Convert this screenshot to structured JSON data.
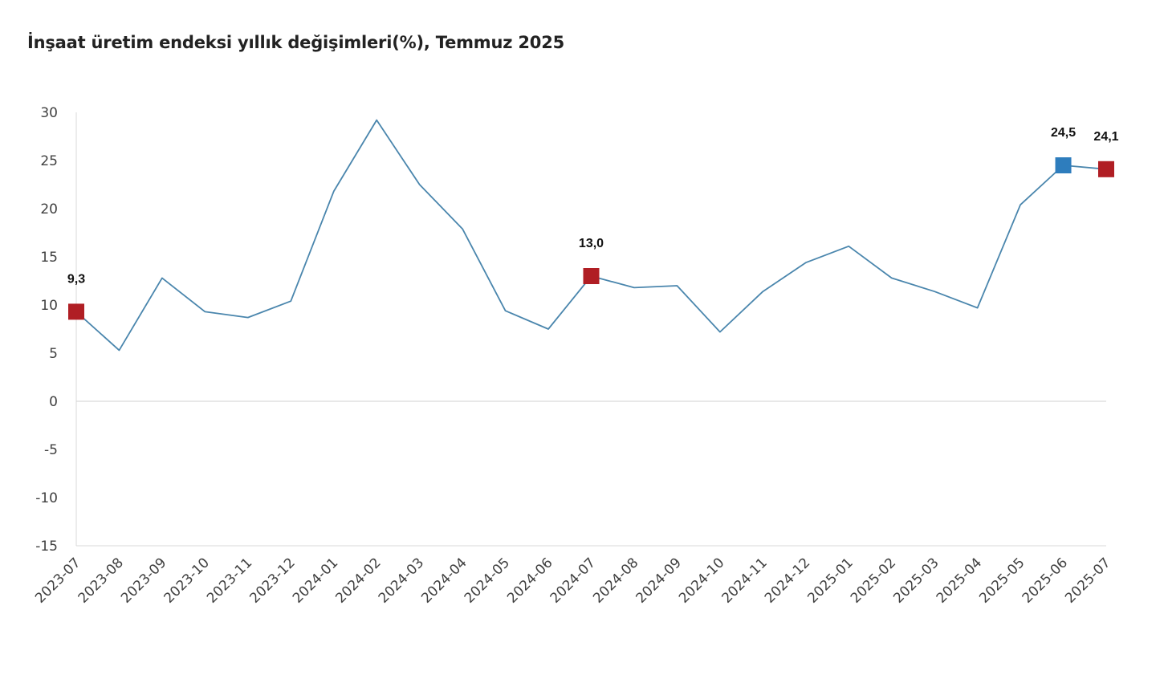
{
  "chart_data": {
    "type": "line",
    "title": "İnşaat üretim endeksi yıllık değişimleri(%), Temmuz 2025",
    "xlabel": "",
    "ylabel": "",
    "ylim": [
      -15,
      30
    ],
    "yticks": [
      30,
      25,
      20,
      15,
      10,
      5,
      0,
      -5,
      -10,
      -15
    ],
    "grid": false,
    "legend": "none",
    "categories": [
      "2023-07",
      "2023-08",
      "2023-09",
      "2023-10",
      "2023-11",
      "2023-12",
      "2024-01",
      "2024-02",
      "2024-03",
      "2024-04",
      "2024-05",
      "2024-06",
      "2024-07",
      "2024-08",
      "2024-09",
      "2024-10",
      "2024-11",
      "2024-12",
      "2025-01",
      "2025-02",
      "2025-03",
      "2025-04",
      "2025-05",
      "2025-06",
      "2025-07"
    ],
    "series": [
      {
        "color": "#4a86ad",
        "values": [
          9.3,
          5.3,
          12.8,
          9.3,
          8.7,
          10.4,
          21.8,
          29.2,
          22.5,
          17.9,
          9.4,
          7.5,
          13.0,
          11.8,
          12.0,
          7.2,
          11.4,
          14.4,
          16.1,
          12.8,
          11.4,
          9.7,
          20.4,
          24.5,
          24.1
        ]
      }
    ],
    "highlights": [
      {
        "category": "2023-07",
        "value": 9.3,
        "label": "9,3",
        "color": "#b01e24"
      },
      {
        "category": "2024-07",
        "value": 13.0,
        "label": "13,0",
        "color": "#b01e24"
      },
      {
        "category": "2025-06",
        "value": 24.5,
        "label": "24,5",
        "color": "#2e7dbd"
      },
      {
        "category": "2025-07",
        "value": 24.1,
        "label": "24,1",
        "color": "#b01e24"
      }
    ],
    "colors": {
      "axis": "#d9d9d9",
      "zero_line": "#d9d9d9",
      "line": "#4a86ad"
    }
  }
}
